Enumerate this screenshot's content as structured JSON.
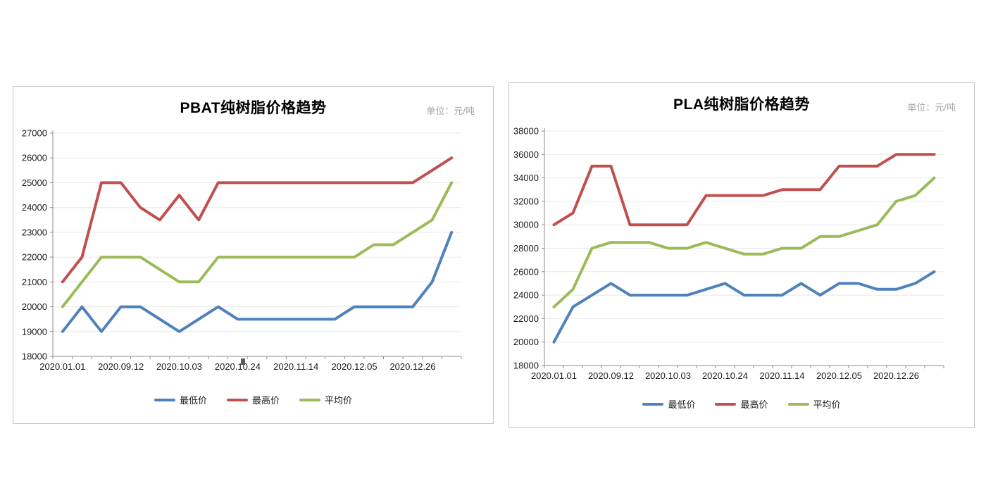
{
  "styles": {
    "grid_color": "#e8e8e8",
    "axis_color": "#8c8c8c",
    "tick_label_color": "#1a1a1a",
    "title_color": "#000000",
    "unit_color": "#a6a6a6",
    "panel_border_color": "#c2c2c2",
    "min_color": "#4F81BD",
    "max_color": "#C0504D",
    "avg_color": "#9BBB59"
  },
  "chart_data": [
    {
      "type": "line",
      "title": "PBAT纯树脂价格趋势",
      "unit_label": "单位：元/吨",
      "categories_labeled": [
        "2020.01.01",
        "2020.09.12",
        "2020.10.03",
        "2020.10.24",
        "2020.11.14",
        "2020.12.05",
        "2020.12.26"
      ],
      "label_interval": 3,
      "num_points": 21,
      "ylim": [
        18000,
        27000
      ],
      "y_tick_step": 1000,
      "grid": true,
      "legend_position": "bottom",
      "series": [
        {
          "name": "最低价",
          "color": "#4F81BD",
          "values": [
            19000,
            20000,
            19000,
            20000,
            20000,
            19500,
            19000,
            19500,
            20000,
            19500,
            19500,
            19500,
            19500,
            19500,
            19500,
            20000,
            20000,
            20000,
            20000,
            21000,
            23000
          ]
        },
        {
          "name": "最高价",
          "color": "#C0504D",
          "values": [
            21000,
            22000,
            25000,
            25000,
            24000,
            23500,
            24500,
            23500,
            25000,
            25000,
            25000,
            25000,
            25000,
            25000,
            25000,
            25000,
            25000,
            25000,
            25000,
            25500,
            26000
          ]
        },
        {
          "name": "平均价",
          "color": "#9BBB59",
          "values": [
            20000,
            21000,
            22000,
            22000,
            22000,
            21500,
            21000,
            21000,
            22000,
            22000,
            22000,
            22000,
            22000,
            22000,
            22000,
            22000,
            22500,
            22500,
            23000,
            23500,
            25000
          ]
        }
      ]
    },
    {
      "type": "line",
      "title": "PLA纯树脂价格趋势",
      "unit_label": "单位：元/吨",
      "categories_labeled": [
        "2020.01.01",
        "2020.09.12",
        "2020.10.03",
        "2020.10.24",
        "2020.11.14",
        "2020.12.05",
        "2020.12.26"
      ],
      "label_interval": 3,
      "num_points": 21,
      "ylim": [
        18000,
        38000
      ],
      "y_tick_step": 2000,
      "grid": true,
      "legend_position": "bottom",
      "series": [
        {
          "name": "最低价",
          "color": "#4F81BD",
          "values": [
            20000,
            23000,
            24000,
            25000,
            24000,
            24000,
            24000,
            24000,
            24500,
            25000,
            24000,
            24000,
            24000,
            25000,
            24000,
            25000,
            25000,
            24500,
            24500,
            25000,
            26000
          ]
        },
        {
          "name": "最高价",
          "color": "#C0504D",
          "values": [
            30000,
            31000,
            35000,
            35000,
            30000,
            30000,
            30000,
            30000,
            32500,
            32500,
            32500,
            32500,
            33000,
            33000,
            33000,
            35000,
            35000,
            35000,
            36000,
            36000,
            36000
          ]
        },
        {
          "name": "平均价",
          "color": "#9BBB59",
          "values": [
            23000,
            24500,
            28000,
            28500,
            28500,
            28500,
            28000,
            28000,
            28500,
            28000,
            27500,
            27500,
            28000,
            28000,
            29000,
            29000,
            29500,
            30000,
            32000,
            32500,
            34000
          ]
        }
      ]
    }
  ]
}
